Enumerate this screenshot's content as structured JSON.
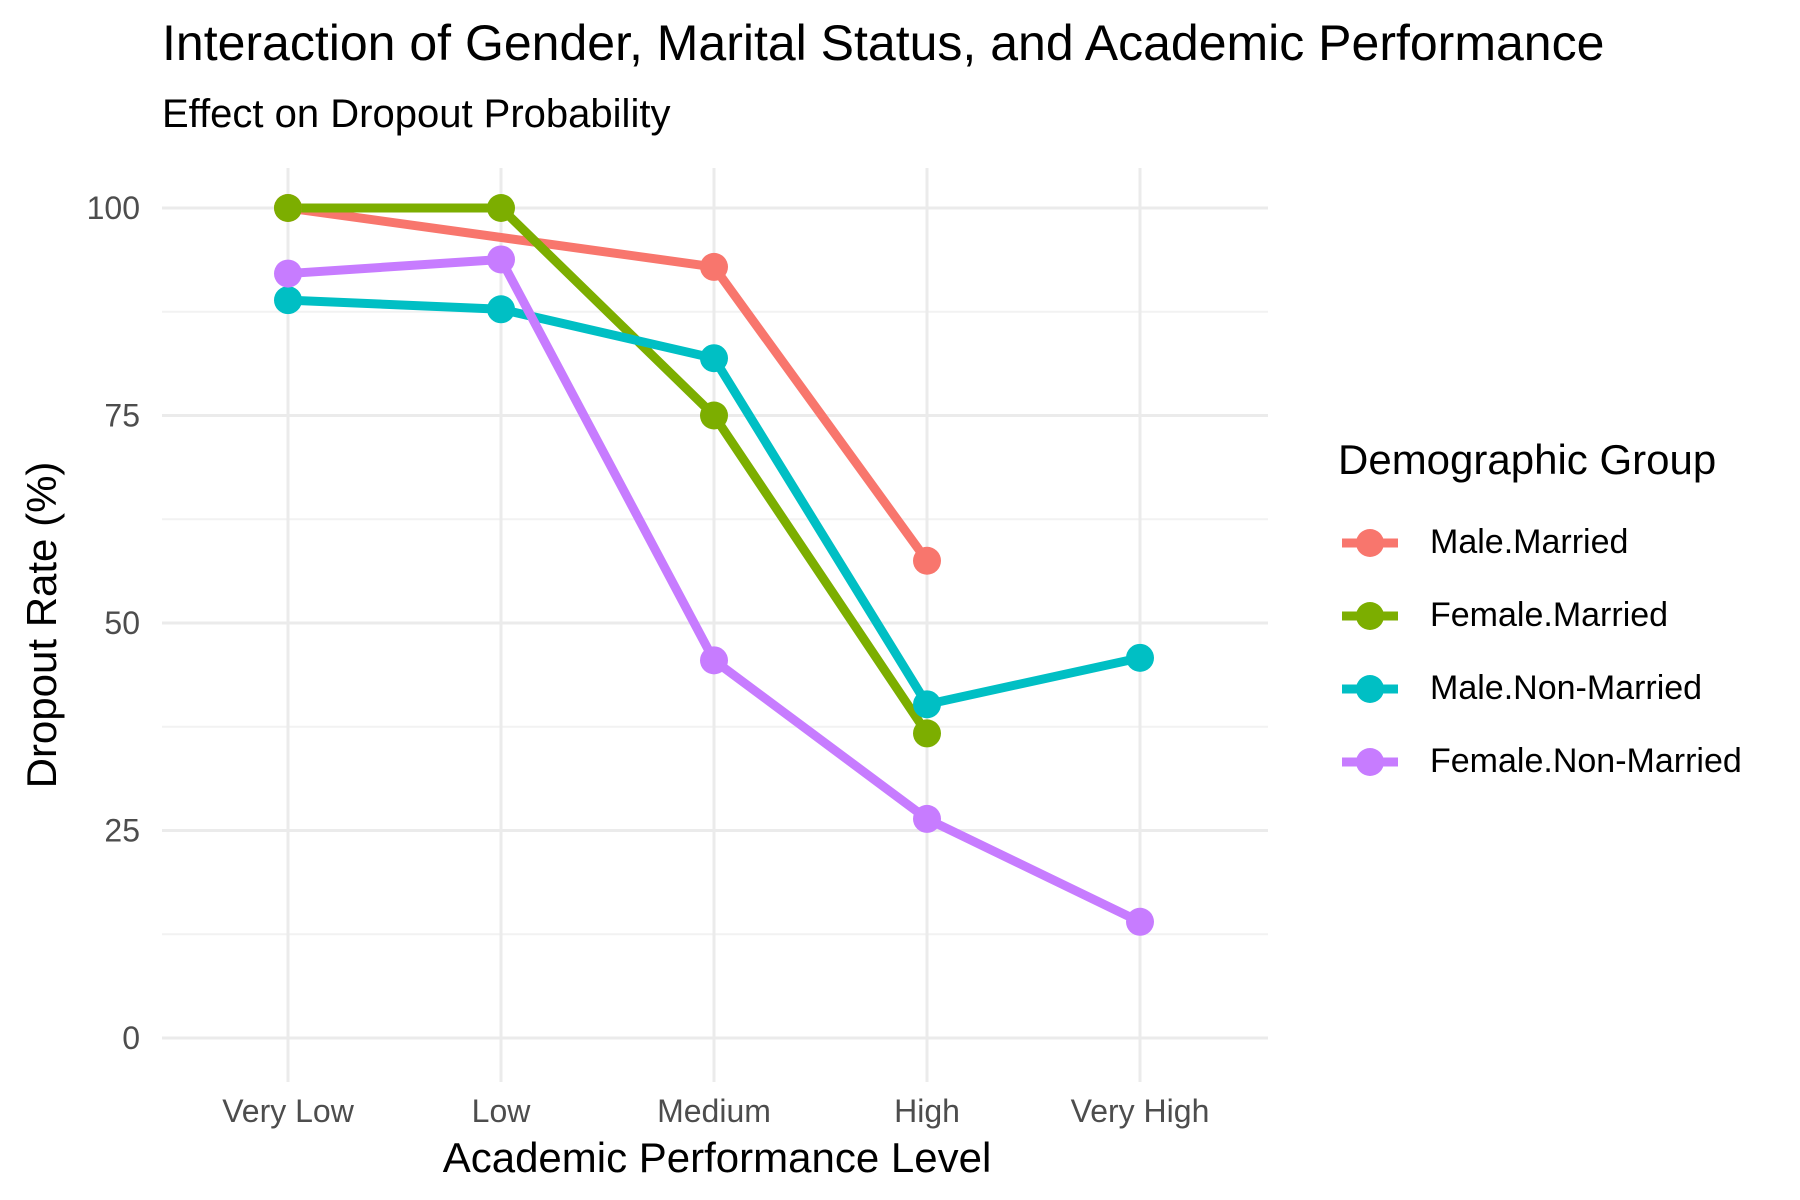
{
  "chart_data": {
    "type": "line",
    "title": "Interaction of Gender, Marital Status, and Academic Performance",
    "subtitle": "Effect on Dropout Probability",
    "xlabel": "Academic Performance Level",
    "ylabel": "Dropout Rate (%)",
    "categories": [
      "Very Low",
      "Low",
      "Medium",
      "High",
      "Very High"
    ],
    "ylim": [
      -5,
      105
    ],
    "yticks": [
      0,
      25,
      50,
      75,
      100
    ],
    "grid": true,
    "legend_title": "Demographic Group",
    "legend_position": "right",
    "series": [
      {
        "name": "Male.Married",
        "color": "#F8766D",
        "values": [
          100,
          null,
          92.9,
          57.5,
          null
        ]
      },
      {
        "name": "Female.Married",
        "color": "#7CAE00",
        "values": [
          100,
          100,
          75,
          36.7,
          null
        ]
      },
      {
        "name": "Male.Non-Married",
        "color": "#00BFC4",
        "values": [
          88.9,
          87.8,
          81.9,
          40.2,
          45.8
        ]
      },
      {
        "name": "Female.Non-Married",
        "color": "#C77CFF",
        "values": [
          92.1,
          93.8,
          45.5,
          26.4,
          14
        ]
      }
    ]
  }
}
